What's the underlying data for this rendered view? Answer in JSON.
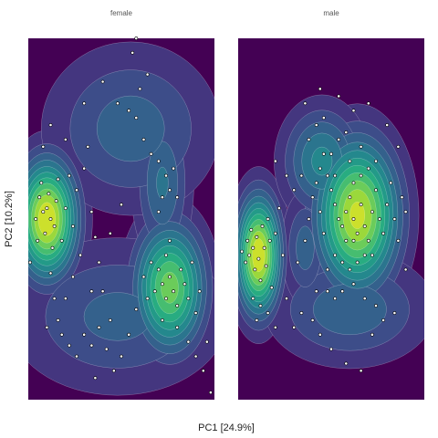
{
  "chart_data": {
    "type": "scatter",
    "subtype": "faceted-2d-density-with-points",
    "xlabel": "PC1 [24.9%]",
    "ylabel": "PC2 [10.2%]",
    "grid": false,
    "legend": "none",
    "colormap": [
      "#440154",
      "#472d7b",
      "#3b528b",
      "#2c728e",
      "#21918c",
      "#28ae80",
      "#5ec962",
      "#addc30",
      "#fde725"
    ],
    "point_fill": "#ffffff",
    "point_stroke": "#000000",
    "xlim": [
      0,
      100
    ],
    "ylim": [
      0,
      100
    ],
    "facets": [
      {
        "label": "female",
        "peaks": [
          {
            "x": 10,
            "y": 50,
            "sx": 11,
            "sy": 11,
            "w": 1.0
          },
          {
            "x": 76,
            "y": 31,
            "sx": 13,
            "sy": 12,
            "w": 0.8
          },
          {
            "x": 72,
            "y": 60,
            "sx": 10,
            "sy": 14,
            "w": 0.35
          },
          {
            "x": 55,
            "y": 75,
            "sx": 30,
            "sy": 15,
            "w": 0.3
          },
          {
            "x": 48,
            "y": 23,
            "sx": 38,
            "sy": 14,
            "w": 0.28
          }
        ],
        "points": [
          [
            1,
            38
          ],
          [
            4,
            50
          ],
          [
            6,
            56
          ],
          [
            8,
            52
          ],
          [
            10,
            53
          ],
          [
            12,
            50
          ],
          [
            14,
            48
          ],
          [
            5,
            44
          ],
          [
            7,
            60
          ],
          [
            9,
            46
          ],
          [
            11,
            57
          ],
          [
            13,
            42
          ],
          [
            15,
            55
          ],
          [
            16,
            61
          ],
          [
            18,
            44
          ],
          [
            20,
            53
          ],
          [
            22,
            62
          ],
          [
            24,
            48
          ],
          [
            26,
            58
          ],
          [
            30,
            64
          ],
          [
            28,
            40
          ],
          [
            32,
            70
          ],
          [
            34,
            52
          ],
          [
            36,
            45
          ],
          [
            38,
            38
          ],
          [
            40,
            30
          ],
          [
            12,
            35
          ],
          [
            14,
            28
          ],
          [
            16,
            22
          ],
          [
            10,
            20
          ],
          [
            18,
            18
          ],
          [
            22,
            15
          ],
          [
            26,
            12
          ],
          [
            30,
            18
          ],
          [
            34,
            15
          ],
          [
            38,
            20
          ],
          [
            42,
            14
          ],
          [
            44,
            22
          ],
          [
            46,
            8
          ],
          [
            50,
            12
          ],
          [
            54,
            18
          ],
          [
            58,
            25
          ],
          [
            62,
            34
          ],
          [
            64,
            28
          ],
          [
            66,
            38
          ],
          [
            68,
            30
          ],
          [
            70,
            36
          ],
          [
            72,
            32
          ],
          [
            74,
            28
          ],
          [
            76,
            34
          ],
          [
            78,
            30
          ],
          [
            80,
            26
          ],
          [
            82,
            36
          ],
          [
            84,
            32
          ],
          [
            86,
            28
          ],
          [
            88,
            38
          ],
          [
            90,
            24
          ],
          [
            92,
            30
          ],
          [
            74,
            40
          ],
          [
            76,
            44
          ],
          [
            72,
            22
          ],
          [
            80,
            20
          ],
          [
            86,
            16
          ],
          [
            90,
            12
          ],
          [
            94,
            8
          ],
          [
            98,
            2
          ],
          [
            96,
            16
          ],
          [
            70,
            52
          ],
          [
            72,
            56
          ],
          [
            74,
            62
          ],
          [
            76,
            58
          ],
          [
            70,
            66
          ],
          [
            66,
            68
          ],
          [
            62,
            72
          ],
          [
            58,
            78
          ],
          [
            54,
            80
          ],
          [
            60,
            86
          ],
          [
            64,
            90
          ],
          [
            56,
            96
          ],
          [
            58,
            100
          ],
          [
            48,
            82
          ],
          [
            40,
            88
          ],
          [
            30,
            82
          ],
          [
            20,
            72
          ],
          [
            8,
            70
          ],
          [
            12,
            76
          ],
          [
            78,
            64
          ],
          [
            80,
            56
          ],
          [
            44,
            46
          ],
          [
            50,
            54
          ],
          [
            34,
            30
          ],
          [
            36,
            6
          ],
          [
            20,
            28
          ],
          [
            24,
            34
          ]
        ]
      },
      {
        "label": "male",
        "peaks": [
          {
            "x": 11,
            "y": 40,
            "sx": 8,
            "sy": 11,
            "w": 1.0
          },
          {
            "x": 64,
            "y": 51,
            "sx": 15,
            "sy": 14,
            "w": 0.95
          },
          {
            "x": 45,
            "y": 66,
            "sx": 14,
            "sy": 10,
            "w": 0.45
          },
          {
            "x": 60,
            "y": 25,
            "sx": 28,
            "sy": 10,
            "w": 0.32
          },
          {
            "x": 36,
            "y": 42,
            "sx": 8,
            "sy": 10,
            "w": 0.3
          }
        ],
        "points": [
          [
            2,
            41
          ],
          [
            4,
            38
          ],
          [
            5,
            44
          ],
          [
            6,
            40
          ],
          [
            7,
            47
          ],
          [
            8,
            42
          ],
          [
            9,
            36
          ],
          [
            10,
            45
          ],
          [
            11,
            39
          ],
          [
            12,
            33
          ],
          [
            13,
            48
          ],
          [
            14,
            42
          ],
          [
            15,
            37
          ],
          [
            16,
            50
          ],
          [
            17,
            44
          ],
          [
            18,
            31
          ],
          [
            20,
            46
          ],
          [
            22,
            53
          ],
          [
            24,
            40
          ],
          [
            8,
            28
          ],
          [
            12,
            26
          ],
          [
            16,
            24
          ],
          [
            10,
            22
          ],
          [
            20,
            20
          ],
          [
            26,
            28
          ],
          [
            32,
            38
          ],
          [
            36,
            44
          ],
          [
            38,
            50
          ],
          [
            40,
            56
          ],
          [
            42,
            60
          ],
          [
            44,
            64
          ],
          [
            46,
            68
          ],
          [
            48,
            62
          ],
          [
            50,
            58
          ],
          [
            52,
            54
          ],
          [
            54,
            50
          ],
          [
            56,
            48
          ],
          [
            58,
            52
          ],
          [
            60,
            56
          ],
          [
            62,
            50
          ],
          [
            64,
            46
          ],
          [
            66,
            54
          ],
          [
            68,
            48
          ],
          [
            70,
            44
          ],
          [
            72,
            52
          ],
          [
            74,
            58
          ],
          [
            76,
            50
          ],
          [
            78,
            46
          ],
          [
            80,
            54
          ],
          [
            82,
            60
          ],
          [
            84,
            50
          ],
          [
            86,
            44
          ],
          [
            88,
            56
          ],
          [
            90,
            52
          ],
          [
            58,
            44
          ],
          [
            62,
            60
          ],
          [
            66,
            62
          ],
          [
            70,
            64
          ],
          [
            74,
            66
          ],
          [
            68,
            40
          ],
          [
            72,
            40
          ],
          [
            50,
            68
          ],
          [
            54,
            72
          ],
          [
            58,
            74
          ],
          [
            38,
            72
          ],
          [
            42,
            76
          ],
          [
            46,
            78
          ],
          [
            34,
            62
          ],
          [
            30,
            58
          ],
          [
            52,
            40
          ],
          [
            56,
            38
          ],
          [
            60,
            36
          ],
          [
            64,
            38
          ],
          [
            48,
            30
          ],
          [
            52,
            28
          ],
          [
            56,
            30
          ],
          [
            62,
            32
          ],
          [
            68,
            28
          ],
          [
            74,
            26
          ],
          [
            78,
            22
          ],
          [
            40,
            22
          ],
          [
            34,
            24
          ],
          [
            30,
            20
          ],
          [
            44,
            18
          ],
          [
            50,
            14
          ],
          [
            58,
            10
          ],
          [
            66,
            8
          ],
          [
            72,
            18
          ],
          [
            84,
            24
          ],
          [
            90,
            36
          ],
          [
            86,
            70
          ],
          [
            80,
            76
          ],
          [
            70,
            82
          ],
          [
            62,
            80
          ],
          [
            54,
            84
          ],
          [
            44,
            86
          ],
          [
            36,
            82
          ],
          [
            20,
            66
          ],
          [
            26,
            62
          ],
          [
            46,
            46
          ],
          [
            44,
            52
          ],
          [
            66,
            70
          ],
          [
            60,
            66
          ],
          [
            52,
            62
          ],
          [
            48,
            36
          ],
          [
            42,
            30
          ],
          [
            62,
            44
          ]
        ]
      }
    ]
  }
}
